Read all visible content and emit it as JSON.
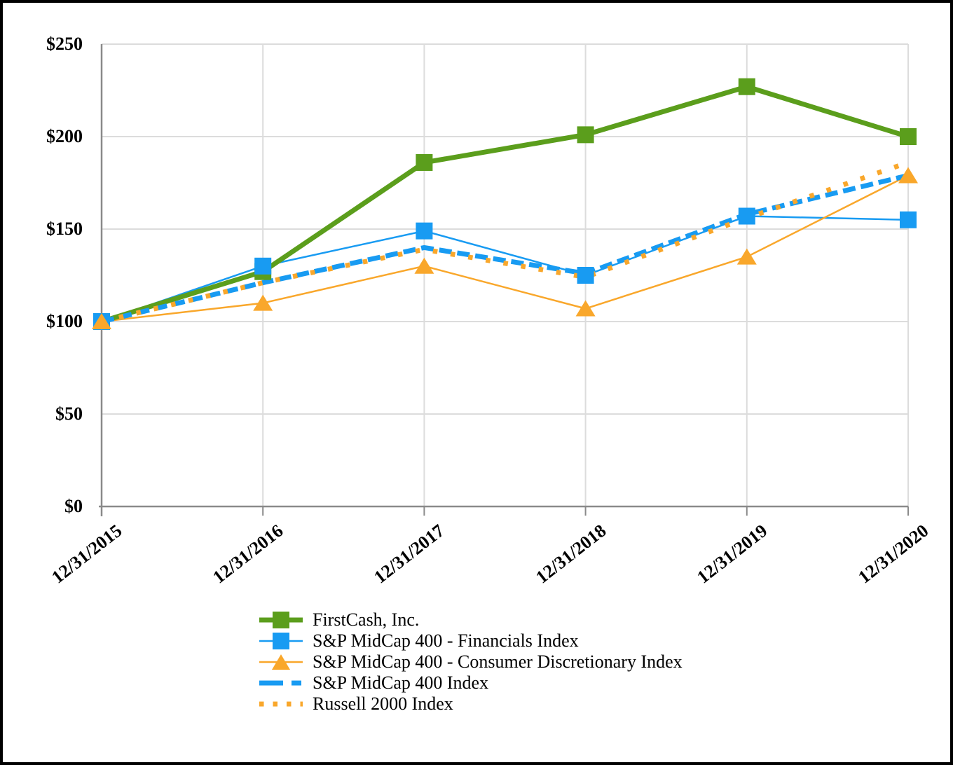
{
  "chart_data": {
    "type": "line",
    "title": "",
    "categories": [
      "12/31/2015",
      "12/31/2016",
      "12/31/2017",
      "12/31/2018",
      "12/31/2019",
      "12/31/2020"
    ],
    "ylim": [
      0,
      250
    ],
    "y_tick_step": 50,
    "y_tick_labels": [
      "$250",
      "$200",
      "$150",
      "$100",
      "$50",
      "$0"
    ],
    "y_tick_prefix": "$",
    "grid": true,
    "legend_position": "bottom-left",
    "colors": {
      "green": "#5B9E1C",
      "blue": "#189BF2",
      "orange": "#F9A72B",
      "gridline": "#DCDCDC",
      "axis": "#8A8A8A",
      "border": "#000000"
    },
    "series": [
      {
        "name": "FirstCash, Inc.",
        "values": [
          100,
          127,
          186,
          201,
          227,
          200
        ],
        "color": "#5B9E1C",
        "line_style": "solid",
        "line_width": 7,
        "marker": "square"
      },
      {
        "name": "S&P MidCap 400 - Financials Index",
        "values": [
          100,
          130,
          149,
          125,
          157,
          155
        ],
        "color": "#189BF2",
        "line_style": "solid",
        "line_width": 2.5,
        "marker": "square"
      },
      {
        "name": "S&P MidCap 400 - Consumer Discretionary Index",
        "values": [
          100,
          110,
          130,
          107,
          135,
          179
        ],
        "color": "#F9A72B",
        "line_style": "solid",
        "line_width": 2.5,
        "marker": "triangle"
      },
      {
        "name": "S&P MidCap 400 Index",
        "values": [
          100,
          121,
          140,
          126,
          158,
          179
        ],
        "color": "#189BF2",
        "line_style": "dashed",
        "line_width": 7,
        "marker": "none"
      },
      {
        "name": "Russell 2000 Index",
        "values": [
          100,
          121,
          139,
          124,
          156,
          186
        ],
        "color": "#F9A72B",
        "line_style": "dotted",
        "line_width": 7,
        "marker": "none"
      }
    ]
  }
}
